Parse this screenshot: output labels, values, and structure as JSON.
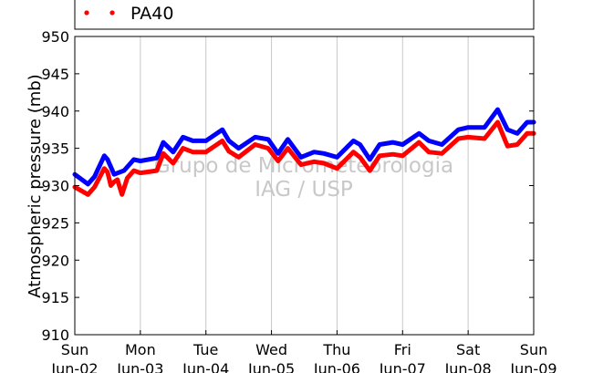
{
  "chart_data": {
    "type": "line",
    "ylabel": "Atmospheric pressure (mb)",
    "ylim": [
      910,
      950
    ],
    "yticks": [
      910,
      915,
      920,
      925,
      930,
      935,
      940,
      945,
      950
    ],
    "xlim": [
      0,
      7
    ],
    "x_tick_labels": [
      {
        "day": "Sun",
        "date": "Jun-02"
      },
      {
        "day": "Mon",
        "date": "Jun-03"
      },
      {
        "day": "Tue",
        "date": "Jun-04"
      },
      {
        "day": "Wed",
        "date": "Jun-05"
      },
      {
        "day": "Thu",
        "date": "Jun-06"
      },
      {
        "day": "Fri",
        "date": "Jun-07"
      },
      {
        "day": "Sat",
        "date": "Jun-08"
      },
      {
        "day": "Sun",
        "date": "Jun-09"
      }
    ],
    "grid": "vertical",
    "watermark": [
      "Grupo de Micrometeorologia",
      "IAG / USP"
    ],
    "legend": {
      "placement": "top-left",
      "visible_entries": [
        "PA40"
      ]
    },
    "series": [
      {
        "color": "#0000ff",
        "x": [
          0.0,
          0.2,
          0.3,
          0.45,
          0.5,
          0.6,
          0.75,
          0.85,
          0.9,
          1.0,
          1.25,
          1.35,
          1.5,
          1.65,
          1.8,
          2.0,
          2.25,
          2.35,
          2.5,
          2.75,
          2.95,
          3.1,
          3.25,
          3.45,
          3.65,
          3.8,
          4.0,
          4.25,
          4.35,
          4.5,
          4.65,
          4.85,
          5.0,
          5.25,
          5.4,
          5.6,
          5.85,
          6.0,
          6.25,
          6.45,
          6.6,
          6.75,
          6.9,
          7.0
        ],
        "y": [
          931.5,
          930.2,
          931.2,
          934.0,
          933.5,
          931.5,
          932.0,
          933.0,
          933.5,
          933.3,
          933.7,
          935.8,
          934.5,
          936.5,
          936.0,
          936.0,
          937.5,
          936.0,
          935.0,
          936.5,
          936.2,
          934.3,
          936.2,
          933.8,
          934.5,
          934.3,
          933.8,
          936.0,
          935.5,
          933.5,
          935.5,
          935.8,
          935.5,
          937.0,
          936.0,
          935.5,
          937.5,
          937.8,
          937.8,
          940.2,
          937.5,
          937.0,
          938.5,
          938.5
        ]
      },
      {
        "color": "#ff0000",
        "x": [
          0.0,
          0.2,
          0.3,
          0.45,
          0.5,
          0.55,
          0.6,
          0.65,
          0.72,
          0.8,
          0.9,
          1.0,
          1.25,
          1.35,
          1.5,
          1.65,
          1.8,
          2.0,
          2.25,
          2.35,
          2.5,
          2.75,
          2.95,
          3.1,
          3.25,
          3.45,
          3.65,
          3.8,
          4.0,
          4.25,
          4.35,
          4.5,
          4.65,
          4.85,
          5.0,
          5.25,
          5.4,
          5.6,
          5.85,
          6.0,
          6.25,
          6.45,
          6.6,
          6.75,
          6.9,
          7.0
        ],
        "y": [
          929.8,
          928.8,
          929.8,
          932.3,
          931.8,
          930.0,
          930.5,
          930.8,
          928.8,
          931.0,
          932.0,
          931.7,
          932.0,
          934.3,
          933.0,
          935.0,
          934.5,
          934.5,
          936.0,
          934.6,
          933.8,
          935.5,
          935.0,
          933.3,
          935.0,
          932.8,
          933.2,
          933.0,
          932.3,
          934.5,
          933.8,
          932.0,
          934.0,
          934.2,
          934.0,
          935.8,
          934.5,
          934.3,
          936.3,
          936.5,
          936.3,
          938.5,
          935.3,
          935.5,
          937.0,
          937.0
        ]
      }
    ]
  }
}
